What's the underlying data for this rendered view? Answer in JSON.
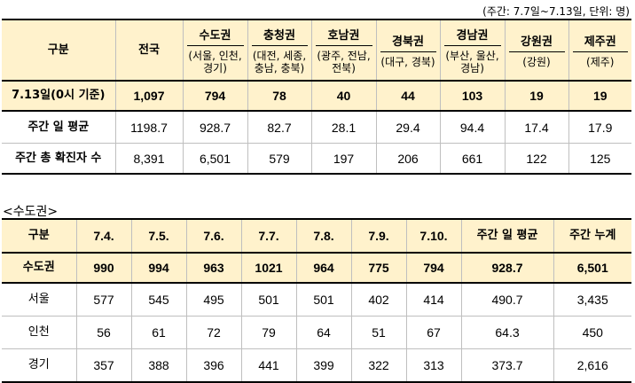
{
  "note": "(주간: 7.7일~7.13일, 단위: 명)",
  "summary": {
    "header_label": "구분",
    "national_label": "전국",
    "regions": [
      {
        "name": "수도권",
        "sub": "(서울, 인천, 경기)"
      },
      {
        "name": "충청권",
        "sub": "(대전, 세종, 충남, 충북)"
      },
      {
        "name": "호남권",
        "sub": "(광주, 전남, 전북)"
      },
      {
        "name": "경북권",
        "sub": "(대구, 경북)"
      },
      {
        "name": "경남권",
        "sub": "(부산, 울산, 경남)"
      },
      {
        "name": "강원권",
        "sub": "(강원)"
      },
      {
        "name": "제주권",
        "sub": "(제주)"
      }
    ],
    "rows": [
      {
        "label": "7.13일(0시 기준)",
        "values": [
          "1,097",
          "794",
          "78",
          "40",
          "44",
          "103",
          "19",
          "19"
        ]
      },
      {
        "label": "주간 일 평균",
        "values": [
          "1198.7",
          "928.7",
          "82.7",
          "28.1",
          "29.4",
          "94.4",
          "17.4",
          "17.9"
        ]
      },
      {
        "label": "주간 총 확진자 수",
        "values": [
          "8,391",
          "6,501",
          "579",
          "197",
          "206",
          "661",
          "122",
          "125"
        ]
      }
    ]
  },
  "capital": {
    "section_title": "<수도권>",
    "headers": [
      "구분",
      "7.4.",
      "7.5.",
      "7.6.",
      "7.7.",
      "7.8.",
      "7.9.",
      "7.10.",
      "주간 일 평균",
      "주간 누계"
    ],
    "rows": [
      {
        "label": "수도권",
        "values": [
          "990",
          "994",
          "963",
          "1021",
          "964",
          "775",
          "794",
          "928.7",
          "6,501"
        ]
      },
      {
        "label": "서울",
        "values": [
          "577",
          "545",
          "495",
          "501",
          "501",
          "402",
          "414",
          "490.7",
          "3,435"
        ]
      },
      {
        "label": "인천",
        "values": [
          "56",
          "61",
          "72",
          "79",
          "64",
          "51",
          "67",
          "64.3",
          "450"
        ]
      },
      {
        "label": "경기",
        "values": [
          "357",
          "388",
          "396",
          "441",
          "399",
          "322",
          "313",
          "373.7",
          "2,616"
        ]
      }
    ]
  }
}
